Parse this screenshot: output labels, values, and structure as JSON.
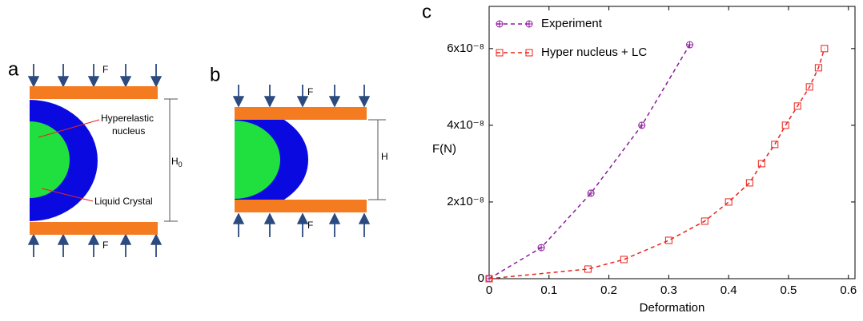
{
  "labels": {
    "panel_a": "a",
    "panel_b": "b",
    "panel_c": "c",
    "force_a_top": "F",
    "force_a_bottom": "F",
    "force_b_top": "F",
    "force_b_bottom": "F",
    "nucleus": [
      "Hyperelastic",
      "nucleus"
    ],
    "liquid_crystal": "Liquid Crystal",
    "height_a": "H",
    "height_a_sub": "0",
    "height_b": "H"
  },
  "chart_data": {
    "type": "line",
    "x_label": "Deformation",
    "y_label": "F(N)",
    "xlim": [
      0,
      0.611
    ],
    "ylim": [
      0,
      7.1e-08
    ],
    "xticks": [
      0,
      0.1,
      0.2,
      0.3,
      0.4,
      0.5,
      0.6
    ],
    "yticks": [
      0,
      {
        "value": 2e-08,
        "label": "2x10⁻⁸"
      },
      {
        "value": 4e-08,
        "label": "4x10⁻⁸"
      },
      {
        "value": 6e-08,
        "label": "6x10⁻⁸"
      }
    ],
    "legend": "upper-left",
    "series": [
      {
        "name": "Experiment",
        "color": "#8b1a9b",
        "marker": "circle-plus",
        "x": [
          0,
          0.087,
          0.17,
          0.255,
          0.335
        ],
        "values": [
          0,
          8.1e-09,
          2.23e-08,
          4e-08,
          6.1e-08
        ]
      },
      {
        "name": "Hyper nucleus + LC",
        "color": "#e8231b",
        "marker": "square",
        "x": [
          0,
          0.165,
          0.225,
          0.3,
          0.36,
          0.4,
          0.435,
          0.455,
          0.477,
          0.495,
          0.515,
          0.535,
          0.55,
          0.56
        ],
        "values": [
          0,
          2.5e-09,
          5e-09,
          1e-08,
          1.5e-08,
          2e-08,
          2.5e-08,
          3e-08,
          3.5e-08,
          4e-08,
          4.5e-08,
          5e-08,
          5.5e-08,
          6e-08
        ]
      }
    ]
  }
}
